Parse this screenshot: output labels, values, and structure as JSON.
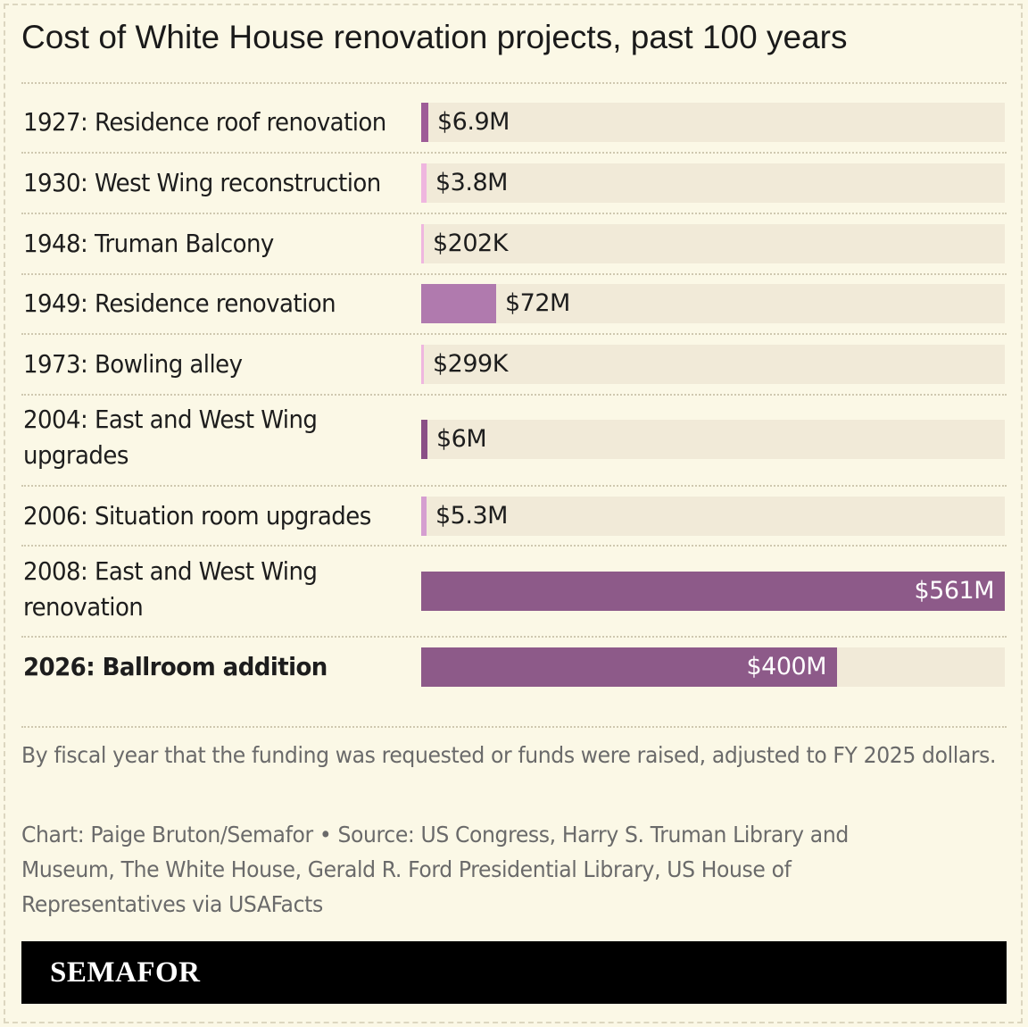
{
  "title": "Cost of White House renovation projects, past 100 years",
  "chart_data": {
    "type": "bar",
    "orientation": "horizontal",
    "title": "Cost of White House renovation projects, past 100 years",
    "unit": "USD (FY 2025 dollars)",
    "xlim": [
      0,
      561000000
    ],
    "categories": [
      "1927: Residence roof renovation",
      "1930: West Wing reconstruction",
      "1948: Truman Balcony",
      "1949: Residence renovation",
      "1973: Bowling alley",
      "2004: East and West Wing upgrades",
      "2006: Situation room upgrades",
      "2008: East and West Wing renovation",
      "2026: Ballroom addition"
    ],
    "values": [
      6900000,
      3800000,
      202000,
      72000000,
      299000,
      6000000,
      5300000,
      561000000,
      400000000
    ],
    "value_labels": [
      "$6.9M",
      "$3.8M",
      "$202K",
      "$72M",
      "$299K",
      "$6M",
      "$5.3M",
      "$561M",
      "$400M"
    ],
    "bar_colors": [
      "#9e5c97",
      "#efb6df",
      "#efb6df",
      "#b07aae",
      "#efb6df",
      "#8a4f86",
      "#d59ed0",
      "#8d5a89",
      "#8d5a89"
    ],
    "highlighted": "2026: Ballroom addition",
    "track_color": "#f1ead8"
  },
  "note": "By fiscal year that the funding was requested or funds were raised, adjusted to FY 2025 dollars.",
  "credit": "Chart: Paige Bruton/Semafor • Source: US Congress, Harry S. Truman Library and Museum, The White House, Gerald R. Ford Presidential Library, US House of Representatives via USAFacts",
  "brand": "SEMAFOR",
  "colors": {
    "background": "#fbf8e6",
    "brand_bar": "#000000"
  }
}
